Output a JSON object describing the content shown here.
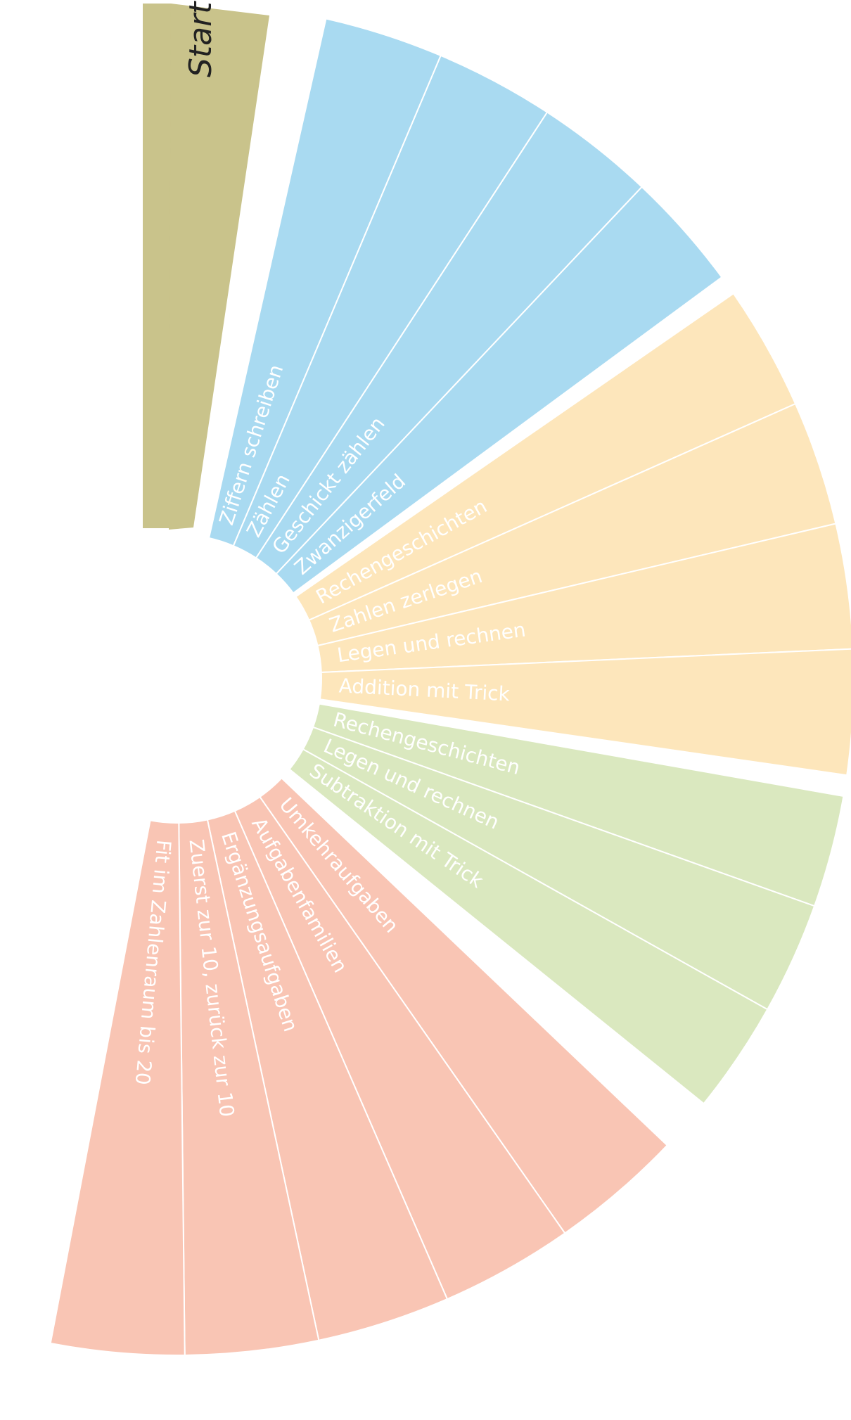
{
  "start": {
    "label": "Start",
    "color": "#c9c38b"
  },
  "groups": [
    {
      "name": "blue",
      "color": "#a9daf1",
      "items": [
        "Ziffern schreiben",
        "Zählen",
        "Geschickt zählen",
        "Zwanzigerfeld"
      ]
    },
    {
      "name": "yellow",
      "color": "#fde6bb",
      "items": [
        "Rechengeschichten",
        "Zahlen zerlegen",
        "Legen und rechnen",
        "Addition mit Trick"
      ]
    },
    {
      "name": "green",
      "color": "#dae8bf",
      "items": [
        "Rechengeschichten",
        "Legen und rechnen",
        "Subtraktion mit Trick"
      ]
    },
    {
      "name": "salmon",
      "color": "#f9c5b4",
      "items": [
        "Umkehraufgaben",
        "Aufgabenfamilien",
        "Ergänzungsaufgaben",
        "Zuerst zur 10, zurück zur 10",
        "Fit im Zahlenraum bis 20"
      ]
    }
  ]
}
